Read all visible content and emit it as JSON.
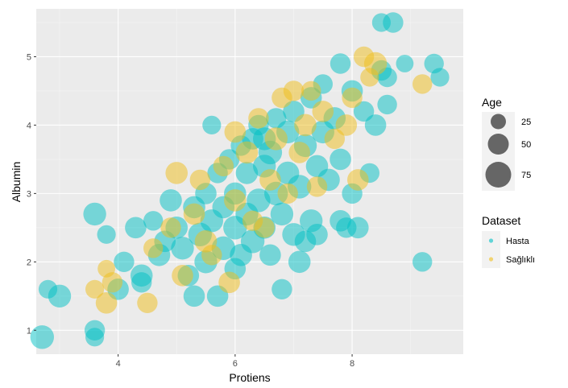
{
  "chart_data": {
    "type": "scatter",
    "title": "",
    "xlabel": "Protiens",
    "ylabel": "Albumin",
    "xlim": [
      2.6,
      9.9
    ],
    "ylim": [
      0.65,
      5.7
    ],
    "x_ticks": [
      4,
      6,
      8
    ],
    "y_ticks": [
      1,
      2,
      3,
      4,
      5
    ],
    "grid": true,
    "legend_position": "right",
    "size_legend": {
      "title": "Age",
      "entries": [
        {
          "label": "25",
          "value": 25
        },
        {
          "label": "50",
          "value": 50
        },
        {
          "label": "75",
          "value": 75
        }
      ]
    },
    "color_legend": {
      "title": "Dataset",
      "entries": [
        {
          "label": "Hasta",
          "color": "#00BFC4"
        },
        {
          "label": "Sağlıklı",
          "color": "#F0BE1A"
        }
      ]
    },
    "alpha": 0.5,
    "series": [
      {
        "name": "Hasta",
        "color": "#00BFC4",
        "points": [
          [
            2.7,
            0.9,
            60
          ],
          [
            2.8,
            1.6,
            30
          ],
          [
            3.0,
            1.5,
            55
          ],
          [
            3.6,
            1.0,
            40
          ],
          [
            3.6,
            0.9,
            30
          ],
          [
            3.6,
            2.7,
            55
          ],
          [
            3.8,
            2.4,
            30
          ],
          [
            4.0,
            1.6,
            45
          ],
          [
            4.1,
            2.0,
            40
          ],
          [
            4.3,
            2.5,
            45
          ],
          [
            4.4,
            1.8,
            50
          ],
          [
            4.6,
            2.6,
            35
          ],
          [
            4.7,
            2.1,
            50
          ],
          [
            4.8,
            2.3,
            45
          ],
          [
            4.9,
            2.9,
            50
          ],
          [
            5.0,
            2.5,
            50
          ],
          [
            5.1,
            2.2,
            55
          ],
          [
            5.2,
            1.8,
            45
          ],
          [
            5.3,
            2.8,
            50
          ],
          [
            5.4,
            2.4,
            60
          ],
          [
            5.5,
            3.0,
            45
          ],
          [
            5.5,
            2.0,
            55
          ],
          [
            5.6,
            2.6,
            55
          ],
          [
            5.7,
            1.5,
            45
          ],
          [
            5.7,
            3.3,
            40
          ],
          [
            5.8,
            2.2,
            60
          ],
          [
            5.8,
            2.8,
            50
          ],
          [
            5.9,
            3.5,
            40
          ],
          [
            6.0,
            2.5,
            60
          ],
          [
            6.0,
            3.0,
            50
          ],
          [
            6.1,
            2.1,
            50
          ],
          [
            6.1,
            3.7,
            40
          ],
          [
            6.2,
            2.7,
            55
          ],
          [
            6.2,
            3.3,
            50
          ],
          [
            6.3,
            2.3,
            60
          ],
          [
            6.3,
            3.8,
            45
          ],
          [
            6.4,
            2.9,
            60
          ],
          [
            6.4,
            4.0,
            40
          ],
          [
            6.5,
            2.5,
            50
          ],
          [
            6.5,
            3.4,
            55
          ],
          [
            6.6,
            3.6,
            60
          ],
          [
            6.6,
            2.1,
            45
          ],
          [
            6.7,
            3.0,
            60
          ],
          [
            6.7,
            4.1,
            40
          ],
          [
            6.8,
            2.7,
            55
          ],
          [
            6.8,
            1.6,
            40
          ],
          [
            6.9,
            3.3,
            55
          ],
          [
            6.9,
            3.9,
            55
          ],
          [
            7.0,
            2.4,
            55
          ],
          [
            7.0,
            4.2,
            45
          ],
          [
            7.1,
            3.1,
            60
          ],
          [
            7.1,
            2.0,
            50
          ],
          [
            7.2,
            3.7,
            55
          ],
          [
            7.3,
            2.6,
            55
          ],
          [
            7.3,
            4.4,
            45
          ],
          [
            7.4,
            3.4,
            50
          ],
          [
            7.4,
            2.4,
            45
          ],
          [
            7.5,
            3.9,
            55
          ],
          [
            7.5,
            4.6,
            35
          ],
          [
            7.6,
            3.2,
            50
          ],
          [
            7.7,
            4.1,
            50
          ],
          [
            7.8,
            2.6,
            45
          ],
          [
            7.8,
            3.5,
            45
          ],
          [
            7.8,
            4.9,
            40
          ],
          [
            7.9,
            2.5,
            40
          ],
          [
            8.0,
            3.0,
            40
          ],
          [
            8.0,
            4.5,
            45
          ],
          [
            8.1,
            2.5,
            45
          ],
          [
            8.2,
            4.2,
            40
          ],
          [
            8.3,
            3.3,
            35
          ],
          [
            8.4,
            4.0,
            45
          ],
          [
            8.5,
            4.8,
            40
          ],
          [
            8.5,
            5.5,
            30
          ],
          [
            8.6,
            4.3,
            35
          ],
          [
            8.6,
            4.7,
            35
          ],
          [
            8.7,
            5.5,
            40
          ],
          [
            8.9,
            4.9,
            25
          ],
          [
            9.2,
            2.0,
            35
          ],
          [
            9.4,
            4.9,
            35
          ],
          [
            9.5,
            4.7,
            30
          ],
          [
            5.6,
            4.0,
            30
          ],
          [
            6.5,
            3.8,
            55
          ],
          [
            7.2,
            2.3,
            45
          ],
          [
            6.0,
            1.9,
            45
          ],
          [
            5.3,
            1.5,
            45
          ],
          [
            4.4,
            1.7,
            40
          ]
        ]
      },
      {
        "name": "Sağlıklı",
        "color": "#F0BE1A",
        "points": [
          [
            3.6,
            1.6,
            30
          ],
          [
            3.8,
            1.9,
            25
          ],
          [
            3.9,
            1.7,
            40
          ],
          [
            4.5,
            1.4,
            40
          ],
          [
            4.6,
            2.2,
            35
          ],
          [
            4.9,
            2.5,
            40
          ],
          [
            5.0,
            3.3,
            50
          ],
          [
            5.1,
            1.8,
            45
          ],
          [
            5.3,
            2.7,
            45
          ],
          [
            5.4,
            3.2,
            40
          ],
          [
            5.6,
            2.1,
            40
          ],
          [
            5.8,
            3.4,
            40
          ],
          [
            5.9,
            1.7,
            45
          ],
          [
            6.0,
            3.9,
            45
          ],
          [
            6.0,
            2.9,
            50
          ],
          [
            6.2,
            3.6,
            50
          ],
          [
            6.3,
            2.6,
            40
          ],
          [
            6.4,
            4.1,
            40
          ],
          [
            6.6,
            3.2,
            45
          ],
          [
            6.7,
            3.8,
            55
          ],
          [
            6.8,
            4.4,
            40
          ],
          [
            6.9,
            3.0,
            40
          ],
          [
            7.0,
            4.5,
            40
          ],
          [
            7.1,
            3.6,
            45
          ],
          [
            7.2,
            4.0,
            50
          ],
          [
            7.3,
            4.5,
            35
          ],
          [
            7.4,
            3.1,
            40
          ],
          [
            7.5,
            4.2,
            45
          ],
          [
            7.7,
            3.8,
            40
          ],
          [
            7.9,
            4.0,
            45
          ],
          [
            8.0,
            4.4,
            40
          ],
          [
            8.1,
            3.2,
            45
          ],
          [
            8.2,
            5.0,
            40
          ],
          [
            8.3,
            4.7,
            30
          ],
          [
            8.4,
            4.9,
            55
          ],
          [
            9.2,
            4.6,
            35
          ],
          [
            5.5,
            2.3,
            50
          ],
          [
            6.5,
            2.5,
            40
          ],
          [
            3.8,
            1.4,
            45
          ]
        ]
      }
    ]
  }
}
